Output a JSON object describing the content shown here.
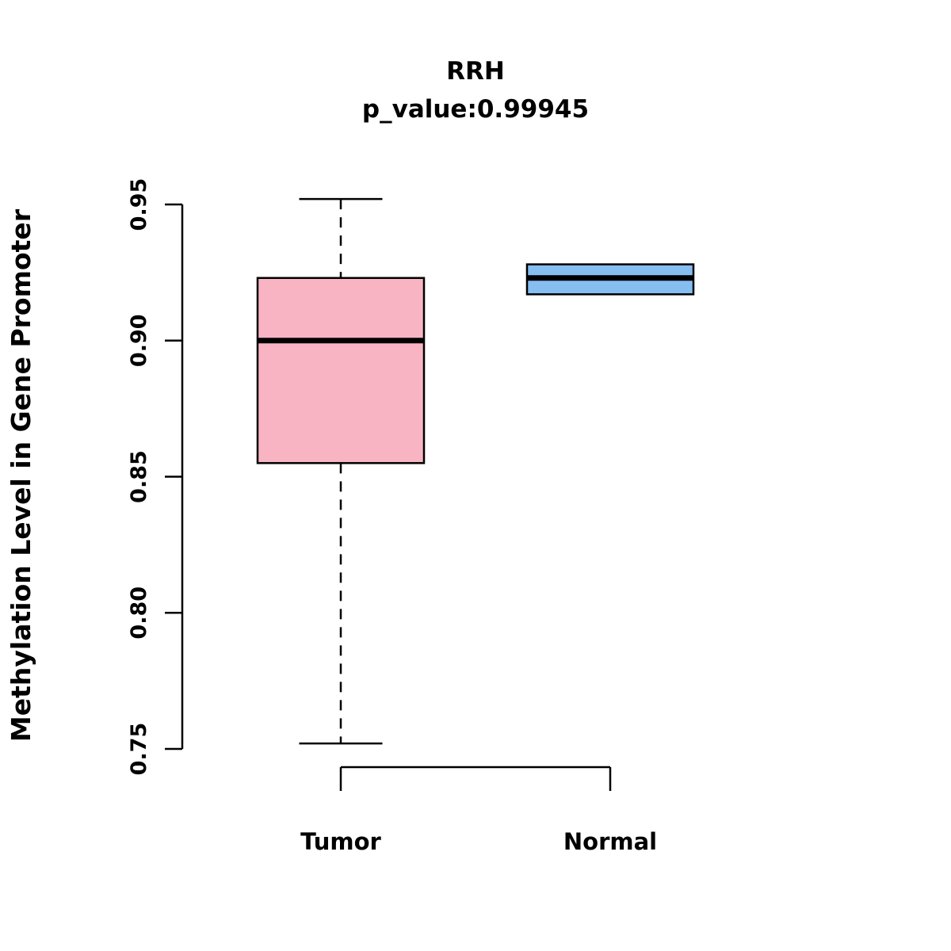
{
  "chart_data": {
    "type": "boxplot",
    "title": "RRH",
    "subtitle": "p_value:0.99945",
    "ylabel": "Methylation Level in Gene Promoter",
    "xlabel": "",
    "ylim": [
      0.75,
      0.95
    ],
    "yticks": [
      0.75,
      0.8,
      0.85,
      0.9,
      0.95
    ],
    "categories": [
      "Tumor",
      "Normal"
    ],
    "grid": false,
    "legend": "none",
    "series": [
      {
        "name": "Tumor",
        "whisker_low": 0.752,
        "q1": 0.855,
        "median": 0.9,
        "q3": 0.923,
        "whisker_high": 0.952,
        "color": "#F9B4C4"
      },
      {
        "name": "Normal",
        "whisker_low": 0.917,
        "q1": 0.917,
        "median": 0.923,
        "q3": 0.928,
        "whisker_high": 0.928,
        "color": "#87BEF2"
      }
    ]
  }
}
